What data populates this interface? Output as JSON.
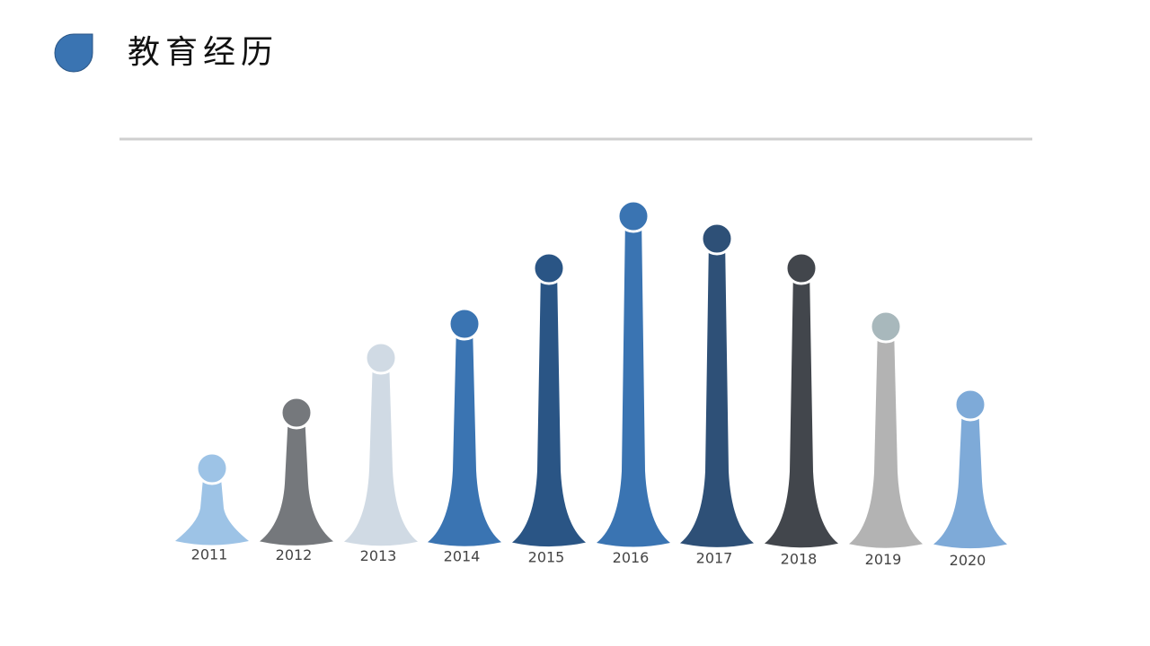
{
  "header": {
    "title": "教育经历"
  },
  "timeline": {
    "years": [
      "2011",
      "2012",
      "2013",
      "2014",
      "2015",
      "2016",
      "2017",
      "2018",
      "2019",
      "2020"
    ]
  }
}
